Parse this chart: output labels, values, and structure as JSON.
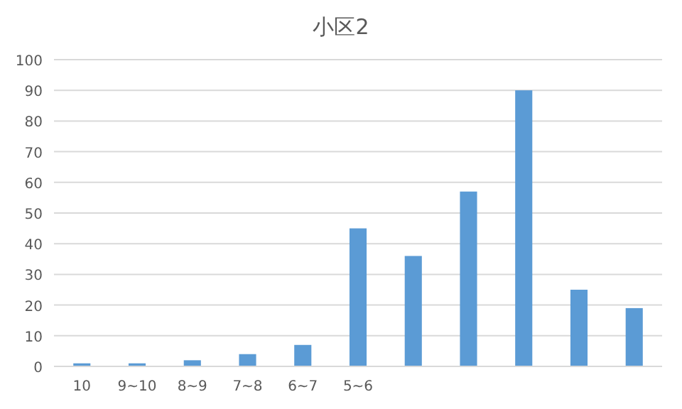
{
  "chart_data": {
    "type": "bar",
    "title": "小区2",
    "categories": [
      "10",
      "9~10",
      "8~9",
      "7~8",
      "6~7",
      "5~6",
      null,
      null,
      null,
      null,
      null
    ],
    "values": [
      1,
      1,
      2,
      4,
      7,
      45,
      36,
      57,
      90,
      25,
      19
    ],
    "color": "#5b9bd5",
    "ylim": [
      0,
      100
    ],
    "yticks": [
      0,
      10,
      20,
      30,
      40,
      50,
      60,
      70,
      80,
      90,
      100
    ],
    "grid": "y"
  }
}
